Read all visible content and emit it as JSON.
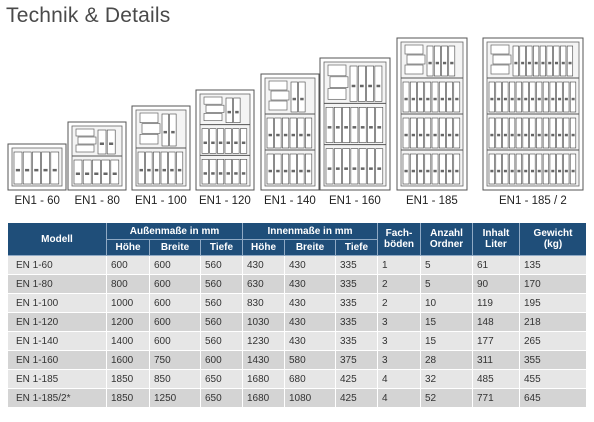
{
  "title": "Technik & Details",
  "cabinets": [
    {
      "label": "EN1 - 60",
      "shelves": 1,
      "w": 50,
      "h": 38,
      "folders": 5
    },
    {
      "label": "EN1 - 80",
      "shelves": 2,
      "w": 50,
      "h": 60,
      "folders": 5
    },
    {
      "label": "EN1 - 100",
      "shelves": 2,
      "w": 50,
      "h": 76,
      "folders": 6
    },
    {
      "label": "EN1 - 120",
      "shelves": 3,
      "w": 50,
      "h": 92,
      "folders": 6
    },
    {
      "label": "EN1 - 140",
      "shelves": 3,
      "w": 50,
      "h": 108,
      "folders": 6
    },
    {
      "label": "EN1 - 160",
      "shelves": 3,
      "w": 62,
      "h": 124,
      "folders": 7
    },
    {
      "label": "EN1 - 185",
      "shelves": 4,
      "w": 62,
      "h": 144,
      "folders": 8
    },
    {
      "label": "EN1 - 185 / 2",
      "shelves": 4,
      "w": 92,
      "h": 144,
      "folders": 13
    }
  ],
  "table": {
    "headers": {
      "modell": "Modell",
      "aussen": "Außenmaße in mm",
      "innen": "Innenmaße in mm",
      "hoehe": "Höhe",
      "breite": "Breite",
      "tiefe": "Tiefe",
      "fach_line1": "Fach-",
      "fach_line2": "böden",
      "ordner_line1": "Anzahl",
      "ordner_line2": "Ordner",
      "inhalt_line1": "Inhalt",
      "inhalt_line2": "Liter",
      "gewicht_line1": "Gewicht",
      "gewicht_line2": "(kg)"
    },
    "rows": [
      [
        "EN 1-60",
        "600",
        "600",
        "560",
        "430",
        "430",
        "335",
        "1",
        "5",
        "61",
        "135"
      ],
      [
        "EN 1-80",
        "800",
        "600",
        "560",
        "630",
        "430",
        "335",
        "2",
        "5",
        "90",
        "170"
      ],
      [
        "EN 1-100",
        "1000",
        "600",
        "560",
        "830",
        "430",
        "335",
        "2",
        "10",
        "119",
        "195"
      ],
      [
        "EN 1-120",
        "1200",
        "600",
        "560",
        "1030",
        "430",
        "335",
        "3",
        "15",
        "148",
        "218"
      ],
      [
        "EN 1-140",
        "1400",
        "600",
        "560",
        "1230",
        "430",
        "335",
        "3",
        "15",
        "177",
        "265"
      ],
      [
        "EN 1-160",
        "1600",
        "750",
        "600",
        "1430",
        "580",
        "375",
        "3",
        "28",
        "311",
        "355"
      ],
      [
        "EN 1-185",
        "1850",
        "850",
        "650",
        "1680",
        "680",
        "425",
        "4",
        "32",
        "485",
        "455"
      ],
      [
        "EN 1-185/2*",
        "1850",
        "1250",
        "650",
        "1680",
        "1080",
        "425",
        "4",
        "52",
        "771",
        "645"
      ]
    ]
  }
}
